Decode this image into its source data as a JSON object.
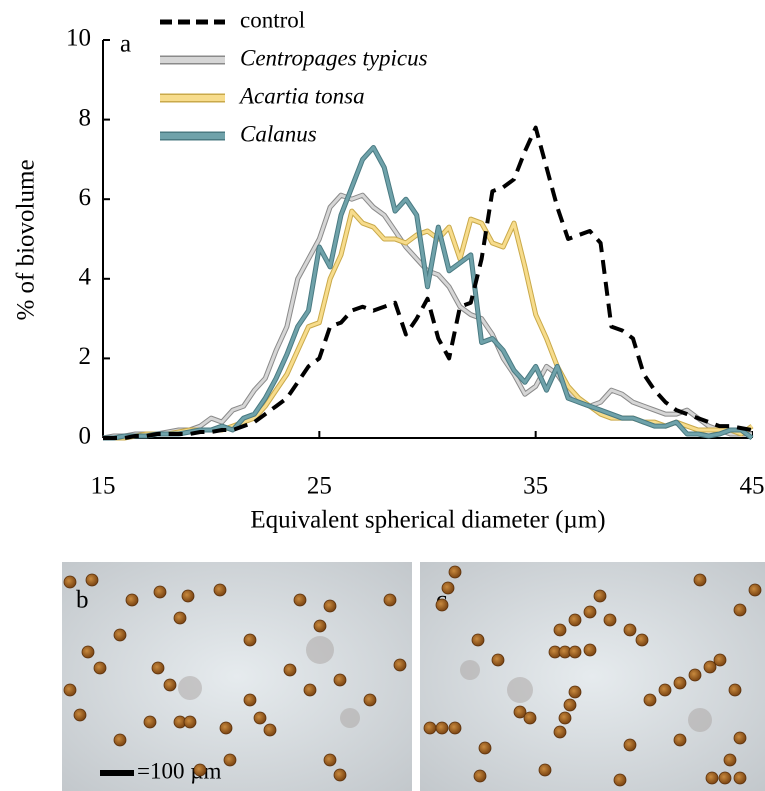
{
  "chart_data": {
    "type": "line",
    "panel_label": "a",
    "xlabel": "Equivalent spherical diameter (µm)",
    "ylabel": "% of biovolume",
    "xlim": [
      15,
      45
    ],
    "ylim": [
      0,
      10
    ],
    "xticks": [
      15,
      25,
      35,
      45
    ],
    "yticks": [
      0,
      2,
      4,
      6,
      8,
      10
    ],
    "x": [
      15,
      15.5,
      16,
      16.5,
      17,
      17.5,
      18,
      18.5,
      19,
      19.5,
      20,
      20.5,
      21,
      21.5,
      22,
      22.5,
      23,
      23.5,
      24,
      24.5,
      25,
      25.5,
      26,
      26.5,
      27,
      27.5,
      28,
      28.5,
      29,
      29.5,
      30,
      30.5,
      31,
      31.5,
      32,
      32.5,
      33,
      33.5,
      34,
      34.5,
      35,
      35.5,
      36,
      36.5,
      37,
      37.5,
      38,
      38.5,
      39,
      39.5,
      40,
      40.5,
      41,
      41.5,
      42,
      42.5,
      43,
      43.5,
      44,
      44.5,
      45
    ],
    "series": [
      {
        "name": "control",
        "color": "#000000",
        "dashed": true,
        "values": [
          0,
          0,
          0,
          0.05,
          0.05,
          0.1,
          0.1,
          0.1,
          0.1,
          0.15,
          0.15,
          0.2,
          0.2,
          0.3,
          0.4,
          0.6,
          0.8,
          1.0,
          1.4,
          1.8,
          2.0,
          2.8,
          2.9,
          3.2,
          3.3,
          3.2,
          3.3,
          3.4,
          2.6,
          3.0,
          3.5,
          2.5,
          2.0,
          3.3,
          3.4,
          4.5,
          6.2,
          6.3,
          6.5,
          7.2,
          7.8,
          6.8,
          5.8,
          5.0,
          5.1,
          5.2,
          4.9,
          2.8,
          2.7,
          2.5,
          1.6,
          1.2,
          0.9,
          0.7,
          0.6,
          0.5,
          0.4,
          0.3,
          0.3,
          0.25,
          0.2
        ]
      },
      {
        "name": "Centropages typicus",
        "color": "#d6d6d6",
        "dashed": false,
        "values": [
          0,
          0.05,
          0.05,
          0.1,
          0.1,
          0.1,
          0.15,
          0.2,
          0.2,
          0.3,
          0.5,
          0.4,
          0.7,
          0.8,
          1.2,
          1.5,
          2.2,
          2.8,
          4.0,
          4.5,
          5.0,
          5.8,
          6.1,
          6.0,
          6.1,
          5.8,
          5.6,
          5.2,
          4.8,
          4.5,
          4.2,
          4.1,
          3.8,
          3.3,
          3.1,
          3.0,
          2.6,
          2.0,
          1.6,
          1.1,
          1.3,
          1.8,
          1.6,
          1.2,
          0.9,
          0.8,
          0.9,
          1.2,
          1.1,
          0.9,
          0.8,
          0.7,
          0.6,
          0.6,
          0.7,
          0.5,
          0.3,
          0.2,
          0.1,
          0.1,
          0.1
        ]
      },
      {
        "name": "Acartia tonsa",
        "color": "#f7dc8c",
        "dashed": false,
        "values": [
          0,
          0,
          0,
          0.05,
          0.1,
          0.1,
          0.1,
          0.15,
          0.2,
          0.2,
          0.2,
          0.2,
          0.3,
          0.4,
          0.5,
          0.8,
          1.2,
          1.6,
          2.2,
          2.8,
          2.9,
          4.0,
          4.6,
          5.7,
          5.4,
          5.3,
          5.0,
          5.0,
          4.9,
          5.1,
          5.2,
          5.0,
          5.3,
          4.5,
          5.5,
          5.4,
          4.9,
          4.8,
          5.4,
          4.3,
          3.1,
          2.5,
          1.8,
          1.3,
          1.0,
          0.8,
          0.6,
          0.5,
          0.5,
          0.5,
          0.4,
          0.4,
          0.3,
          0.4,
          0.3,
          0.2,
          0.2,
          0.2,
          0.2,
          0.1,
          0.3
        ]
      },
      {
        "name": "Calanus",
        "color": "#6fa2aa",
        "dashed": false,
        "values": [
          0,
          0,
          0.05,
          0.05,
          0.05,
          0.1,
          0.1,
          0.1,
          0.15,
          0.2,
          0.2,
          0.3,
          0.2,
          0.5,
          0.6,
          1.0,
          1.5,
          2.1,
          2.8,
          3.2,
          4.8,
          4.3,
          5.6,
          6.3,
          7.0,
          7.3,
          6.8,
          5.7,
          6.0,
          5.6,
          3.8,
          5.3,
          4.2,
          4.4,
          4.6,
          2.4,
          2.5,
          2.2,
          1.7,
          1.4,
          1.8,
          1.2,
          1.8,
          1.0,
          0.9,
          0.8,
          0.7,
          0.6,
          0.5,
          0.5,
          0.4,
          0.3,
          0.3,
          0.4,
          0.1,
          0.1,
          0.05,
          0.1,
          0.2,
          0.2,
          0
        ]
      }
    ]
  },
  "images": [
    {
      "panel_label": "b",
      "scale_bar": "=100 µm"
    },
    {
      "panel_label": "c"
    }
  ]
}
